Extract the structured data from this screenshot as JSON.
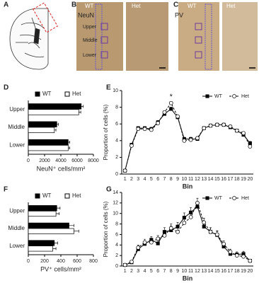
{
  "images": [
    {
      "label": "A"
    },
    {
      "label": "B",
      "stain": "NeuN",
      "columns": [
        "WT",
        "Het"
      ],
      "regions": [
        "Upper",
        "Middle",
        "Lower"
      ]
    },
    {
      "label": "C",
      "stain": "PV",
      "columns": [
        "WT",
        "Het"
      ]
    }
  ],
  "chart_data": [
    {
      "type": "hbar",
      "label": "D",
      "xlabel": "NeuN⁺ cells/mm²",
      "categories": [
        "Upper",
        "Middle",
        "Lower"
      ],
      "xlim": [
        0,
        8000
      ],
      "xticks": [
        0,
        2000,
        4000,
        6000,
        8000
      ],
      "legend": "top",
      "edge_color": "#000000",
      "series": [
        {
          "name": "WT",
          "color": "#000000",
          "values": [
            6500,
            3500,
            4900
          ],
          "errors": [
            250,
            200,
            200
          ]
        },
        {
          "name": "Het",
          "color": "#ffffff",
          "values": [
            6200,
            3200,
            4900
          ],
          "errors": [
            250,
            200,
            200
          ]
        }
      ]
    },
    {
      "type": "line",
      "label": "E",
      "ylabel": "Proportion of cells (%)",
      "xlabel": "Bin",
      "categories": [
        "1",
        "2",
        "3",
        "4",
        "5",
        "6",
        "7",
        "8",
        "9",
        "10",
        "11",
        "12",
        "13",
        "14",
        "15",
        "16",
        "17",
        "18",
        "19",
        "20"
      ],
      "ylim": [
        0,
        10
      ],
      "yticks": [
        0,
        2,
        4,
        6,
        8,
        10
      ],
      "legend": "upper right",
      "edge_color": "#000000",
      "annotations": [
        {
          "text": "*",
          "category": "8"
        }
      ],
      "series": [
        {
          "name": "WT",
          "color": "#000000",
          "marker": "square",
          "dashed": false,
          "values": [
            0.4,
            3.5,
            5.5,
            5.5,
            5.4,
            6.2,
            7.2,
            7.8,
            6.8,
            4.2,
            4.2,
            4.2,
            5.5,
            5.8,
            5.9,
            5.9,
            5.6,
            5.2,
            4.7,
            3.7
          ],
          "errors": [
            0.1,
            0.2,
            0.2,
            0.2,
            0.2,
            0.2,
            0.2,
            0.2,
            0.2,
            0.2,
            0.2,
            0.2,
            0.2,
            0.2,
            0.2,
            0.2,
            0.2,
            0.2,
            0.2,
            0.2
          ]
        },
        {
          "name": "Het",
          "color": "#ffffff",
          "marker": "circle",
          "dashed": true,
          "values": [
            0.4,
            3.4,
            5.4,
            5.4,
            5.3,
            6.1,
            7.4,
            8.5,
            6.9,
            4.0,
            4.1,
            4.3,
            5.5,
            5.8,
            5.9,
            5.9,
            5.7,
            5.2,
            4.9,
            3.3
          ],
          "errors": [
            0.1,
            0.2,
            0.2,
            0.2,
            0.2,
            0.2,
            0.2,
            0.2,
            0.2,
            0.2,
            0.2,
            0.2,
            0.2,
            0.2,
            0.2,
            0.2,
            0.2,
            0.2,
            0.2,
            0.3
          ]
        }
      ]
    },
    {
      "type": "hbar",
      "label": "F",
      "xlabel": "PV⁺ cells/mm²",
      "categories": [
        "Upper",
        "Middle",
        "Lower"
      ],
      "xlim": [
        0,
        800
      ],
      "xticks": [
        0,
        200,
        400,
        600,
        800
      ],
      "legend": "top",
      "edge_color": "#000000",
      "series": [
        {
          "name": "WT",
          "color": "#000000",
          "values": [
            350,
            500,
            320
          ],
          "errors": [
            40,
            60,
            40
          ]
        },
        {
          "name": "Het",
          "color": "#ffffff",
          "values": [
            340,
            560,
            300
          ],
          "errors": [
            40,
            60,
            40
          ]
        }
      ]
    },
    {
      "type": "line",
      "label": "G",
      "ylabel": "Proportion of cells (%)",
      "xlabel": "Bin",
      "categories": [
        "1",
        "2",
        "3",
        "4",
        "5",
        "6",
        "7",
        "8",
        "9",
        "10",
        "11",
        "12",
        "13",
        "14",
        "15",
        "16",
        "17",
        "18",
        "19",
        "20"
      ],
      "ylim": [
        0,
        14
      ],
      "yticks": [
        0,
        2,
        4,
        6,
        8,
        10,
        12,
        14
      ],
      "legend": "upper right",
      "edge_color": "#000000",
      "series": [
        {
          "name": "WT",
          "color": "#000000",
          "marker": "square",
          "dashed": false,
          "values": [
            0.2,
            0.7,
            3.2,
            4.2,
            5.0,
            4.3,
            6.5,
            6.8,
            7.5,
            9.2,
            10.2,
            11.3,
            7.5,
            6.5,
            5.9,
            3.7,
            2.3,
            2.2,
            2.3,
            1.0
          ],
          "errors": [
            0.1,
            0.3,
            0.5,
            0.6,
            0.6,
            0.6,
            0.8,
            0.8,
            0.8,
            0.9,
            0.9,
            0.9,
            0.8,
            0.8,
            0.7,
            0.6,
            0.5,
            0.5,
            0.5,
            0.3
          ]
        },
        {
          "name": "Het",
          "color": "#ffffff",
          "marker": "circle",
          "dashed": true,
          "values": [
            0.2,
            0.8,
            3.5,
            4.5,
            4.5,
            5.2,
            5.8,
            7.2,
            6.5,
            8.2,
            9.3,
            12.0,
            8.3,
            6.5,
            6.0,
            4.2,
            2.7,
            2.0,
            1.8,
            1.0
          ],
          "errors": [
            0.1,
            0.3,
            0.5,
            0.6,
            0.6,
            0.6,
            0.8,
            0.8,
            0.8,
            0.9,
            0.9,
            0.9,
            0.8,
            0.8,
            0.7,
            0.6,
            0.5,
            0.5,
            0.5,
            0.3
          ]
        }
      ]
    }
  ]
}
